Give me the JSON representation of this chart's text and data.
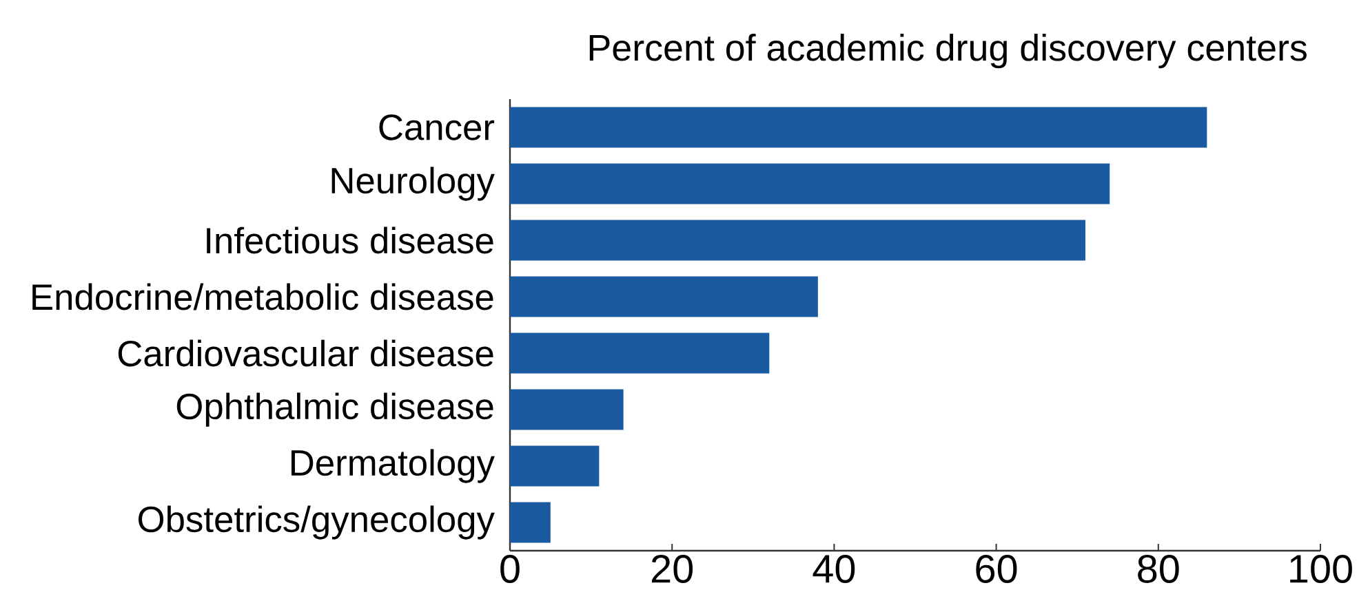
{
  "chart_data": {
    "type": "bar",
    "orientation": "horizontal",
    "title": "Percent of academic drug discovery centers",
    "categories": [
      "Cancer",
      "Neurology",
      "Infectious disease",
      "Endocrine/metabolic disease",
      "Cardiovascular disease",
      "Ophthalmic disease",
      "Dermatology",
      "Obstetrics/gynecology"
    ],
    "values": [
      86,
      74,
      71,
      38,
      32,
      14,
      11,
      5
    ],
    "color": "#1a5aa0",
    "xlim": [
      0,
      100
    ],
    "xticks": [
      0,
      20,
      40,
      60,
      80,
      100
    ],
    "grid": false
  }
}
